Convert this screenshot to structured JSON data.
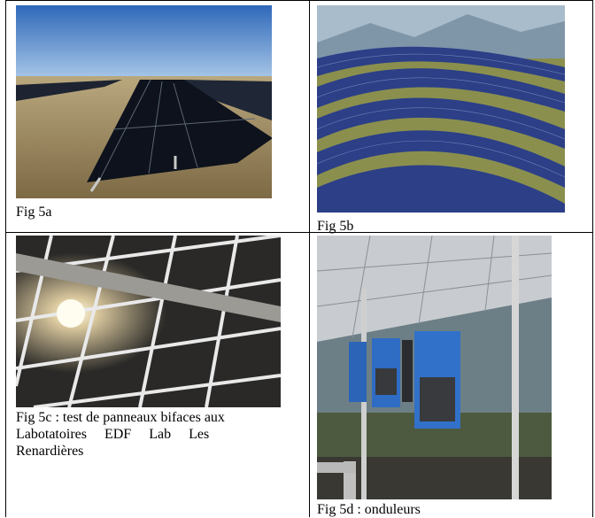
{
  "figures": {
    "fig5a": {
      "caption": "Fig 5a",
      "photo": "ground-mounted solar panels in dry grass field"
    },
    "fig5b": {
      "caption": "Fig 5b",
      "photo": "rows of solar panels following hillside with mountains"
    },
    "fig5c": {
      "caption_line1": "Fig 5c : test de panneaux bifaces aux",
      "caption_line2": "Labotatoires     EDF     Lab     Les",
      "caption_line3": "Renardières",
      "photo": "underside view of bifacial solar panels against sun"
    },
    "fig5d": {
      "caption": "Fig 5d : onduleurs",
      "photo": "blue string inverters mounted under solar array"
    }
  }
}
